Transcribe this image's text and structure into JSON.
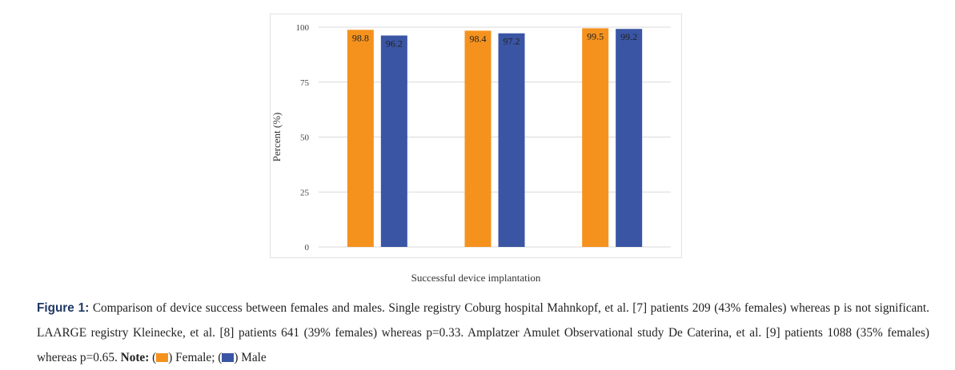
{
  "chart_data": {
    "type": "bar",
    "xlabel": "Successful device implantation",
    "ylabel": "Percent (%)",
    "ylim": [
      0,
      100
    ],
    "yticks": [
      0,
      25,
      50,
      75,
      100
    ],
    "grid": true,
    "categories": [
      "",
      "",
      ""
    ],
    "series": [
      {
        "name": "Female",
        "color": "#f5921e",
        "values": [
          98.8,
          98.4,
          99.5
        ]
      },
      {
        "name": "Male",
        "color": "#3a55a4",
        "values": [
          96.2,
          97.2,
          99.2
        ]
      }
    ],
    "data_labels": [
      [
        "98.8",
        "98.4",
        "99.5"
      ],
      [
        "96.2",
        "97.2",
        "99.2"
      ]
    ]
  },
  "caption": {
    "label": "Figure 1:",
    "text": " Comparison of device success between females and males. Single registry Coburg hospital Mahnkopf, et al. [7] patients 209 (43% females) whereas p is not significant. LAARGE registry Kleinecke, et al. [8] patients 641 (39% females) whereas p=0.33. Amplatzer Amulet Observational study De Caterina, et al. [9] patients 1088 (35% females) whereas p=0.65. ",
    "note_label": "Note:",
    "legend_open_1": " (",
    "female_label": ") Female;",
    "legend_open_2": "  (",
    "male_label": ") Male"
  }
}
